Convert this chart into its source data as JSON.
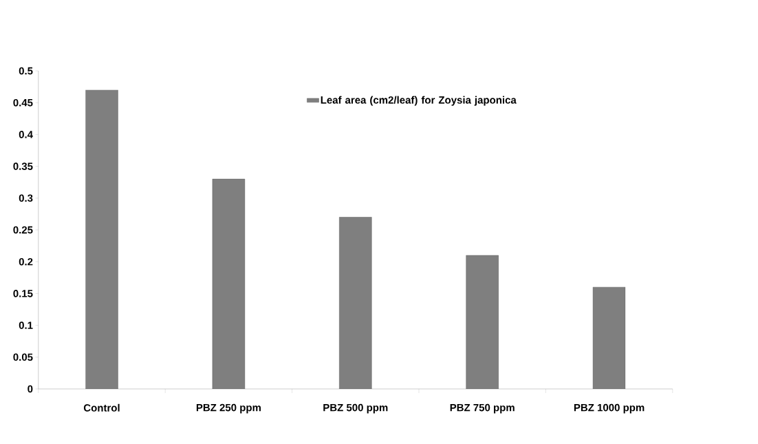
{
  "chart_data": {
    "type": "bar",
    "categories": [
      "Control",
      "PBZ 250 ppm",
      "PBZ 500 ppm",
      "PBZ 750 ppm",
      "PBZ 1000 ppm"
    ],
    "series": [
      {
        "name": "Leaf area (cm2/leaf) for Zoysia japonica",
        "color": "#7f7f7f",
        "values": [
          0.47,
          0.33,
          0.27,
          0.21,
          0.16
        ]
      }
    ],
    "ylim": [
      0,
      0.5
    ],
    "yticks": [
      0,
      0.05,
      0.1,
      0.15,
      0.2,
      0.25,
      0.3,
      0.35,
      0.4,
      0.45,
      0.5
    ],
    "grid": false,
    "legend": "top right"
  }
}
